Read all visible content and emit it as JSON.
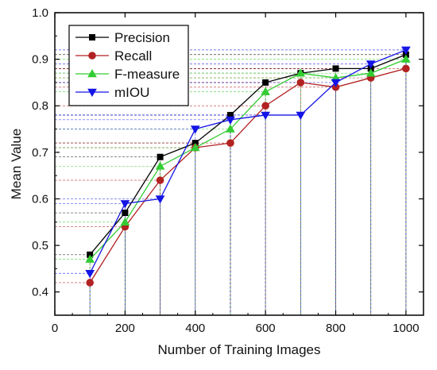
{
  "chart_data": {
    "type": "line",
    "title": "",
    "xlabel": "Number of Training Images",
    "ylabel": "Mean Value",
    "xlim": [
      0,
      1050
    ],
    "ylim": [
      0.35,
      1.0
    ],
    "x_ticks": [
      0,
      200,
      400,
      600,
      800,
      1000
    ],
    "y_ticks": [
      0.4,
      0.5,
      0.6,
      0.7,
      0.8,
      0.9,
      1.0
    ],
    "x_tick_labels": [
      "0",
      "200",
      "400",
      "600",
      "800",
      "1000"
    ],
    "y_tick_labels": [
      "0.4",
      "0.5",
      "0.6",
      "0.7",
      "0.8",
      "0.9",
      "1.0"
    ],
    "x": [
      100,
      200,
      300,
      400,
      500,
      600,
      700,
      800,
      900,
      1000
    ],
    "series": [
      {
        "name": "Precision",
        "color": "#000000",
        "marker": "square",
        "values": [
          0.48,
          0.57,
          0.69,
          0.72,
          0.78,
          0.85,
          0.87,
          0.88,
          0.88,
          0.91
        ]
      },
      {
        "name": "Recall",
        "color": "#b22222",
        "marker": "circle",
        "values": [
          0.42,
          0.54,
          0.64,
          0.71,
          0.72,
          0.8,
          0.85,
          0.84,
          0.86,
          0.88
        ]
      },
      {
        "name": "F-measure",
        "color": "#33cc33",
        "marker": "triangle-up",
        "values": [
          0.47,
          0.55,
          0.67,
          0.71,
          0.75,
          0.83,
          0.87,
          0.86,
          0.87,
          0.9
        ]
      },
      {
        "name": "mIOU",
        "color": "#1414e6",
        "marker": "triangle-down",
        "values": [
          0.44,
          0.59,
          0.6,
          0.75,
          0.77,
          0.78,
          0.78,
          0.85,
          0.89,
          0.92
        ]
      }
    ],
    "grid": false,
    "dashed_guides": true,
    "legend_position": "top-left"
  }
}
